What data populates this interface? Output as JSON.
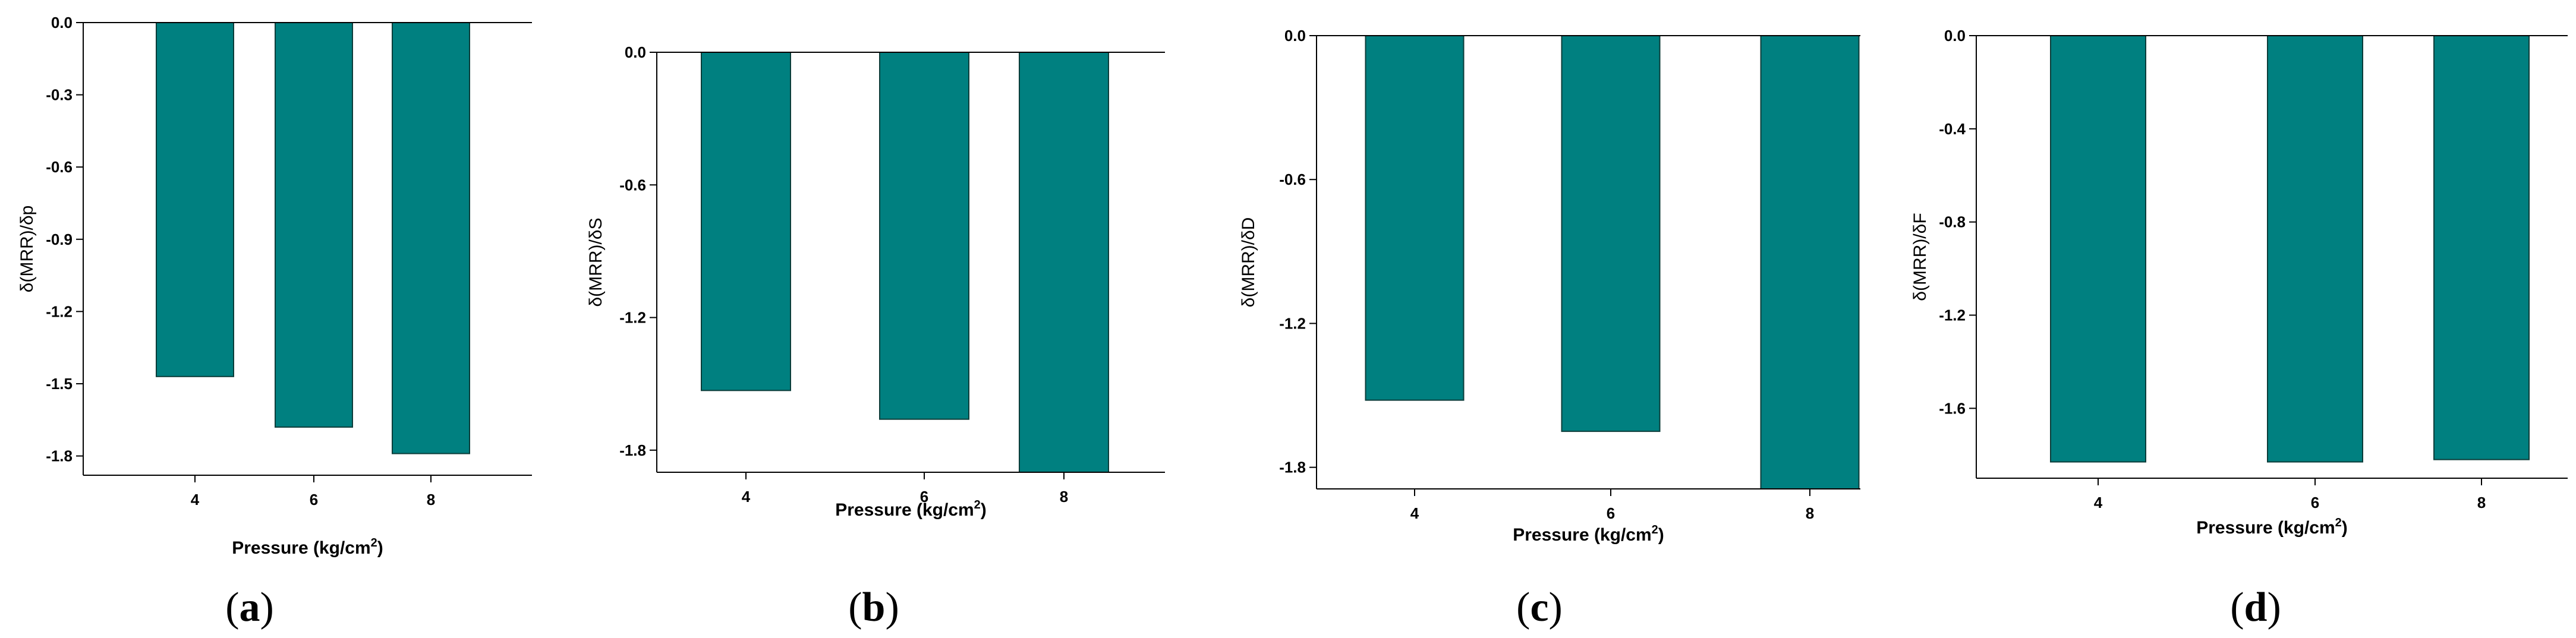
{
  "colors": {
    "bar_fill": "#008080",
    "bar_stroke": "#0b3d3a",
    "axis": "#000000"
  },
  "chart_data": [
    {
      "type": "bar",
      "panel": "a",
      "xlabel": "Pressure (kg/cm",
      "xlabel_sup": "2",
      "xlabel_close": ")",
      "ylabel": "δ(MRR)/δp",
      "categories": [
        "4",
        "6",
        "8"
      ],
      "values": [
        -1.47,
        -1.68,
        -1.79
      ],
      "ylim": [
        -1.88,
        0.0
      ],
      "yticks": [
        0.0,
        -0.3,
        -0.6,
        -0.9,
        -1.2,
        -1.5,
        -1.8
      ],
      "ytick_labels": [
        "0.0",
        "-0.3",
        "-0.6",
        "-0.9",
        "-1.2",
        "-1.5",
        "-1.8"
      ]
    },
    {
      "type": "bar",
      "panel": "b",
      "xlabel": "Pressure (kg/cm",
      "xlabel_sup": "2",
      "xlabel_close": ")",
      "ylabel": "δ(MRR)/δS",
      "categories": [
        "4",
        "6",
        "8"
      ],
      "values": [
        -1.53,
        -1.66,
        -1.9
      ],
      "ylim": [
        -1.9,
        0.0
      ],
      "yticks": [
        0.0,
        -0.6,
        -1.2,
        -1.8
      ],
      "ytick_labels": [
        "0.0",
        "-0.6",
        "-1.2",
        "-1.8"
      ]
    },
    {
      "type": "bar",
      "panel": "c",
      "xlabel": "Pressure (kg/cm",
      "xlabel_sup": "2",
      "xlabel_close": ")",
      "ylabel": "δ(MRR)/δD",
      "categories": [
        "4",
        "6",
        "8"
      ],
      "values": [
        -1.52,
        -1.65,
        -1.89
      ],
      "ylim": [
        -1.89,
        0.0
      ],
      "yticks": [
        0.0,
        -0.6,
        -1.2,
        -1.8
      ],
      "ytick_labels": [
        "0.0",
        "-0.6",
        "-1.2",
        "-1.8"
      ]
    },
    {
      "type": "bar",
      "panel": "d",
      "xlabel": "Pressure (kg/cm",
      "xlabel_sup": "2",
      "xlabel_close": ")",
      "ylabel": "δ(MRR)/δF",
      "categories": [
        "4",
        "6",
        "8"
      ],
      "values": [
        -1.83,
        -1.83,
        -1.82
      ],
      "ylim": [
        -1.9,
        0.0
      ],
      "yticks": [
        0.0,
        -0.4,
        -0.8,
        -1.2,
        -1.6
      ],
      "ytick_labels": [
        "0.0",
        "-0.4",
        "-0.8",
        "-1.2",
        "-1.6"
      ]
    }
  ],
  "panel_labels": [
    {
      "open": "(",
      "letter": "a",
      "close": ")"
    },
    {
      "open": "(",
      "letter": "b",
      "close": ")"
    },
    {
      "open": "(",
      "letter": "c",
      "close": ")"
    },
    {
      "open": "(",
      "letter": "d",
      "close": ")"
    }
  ]
}
